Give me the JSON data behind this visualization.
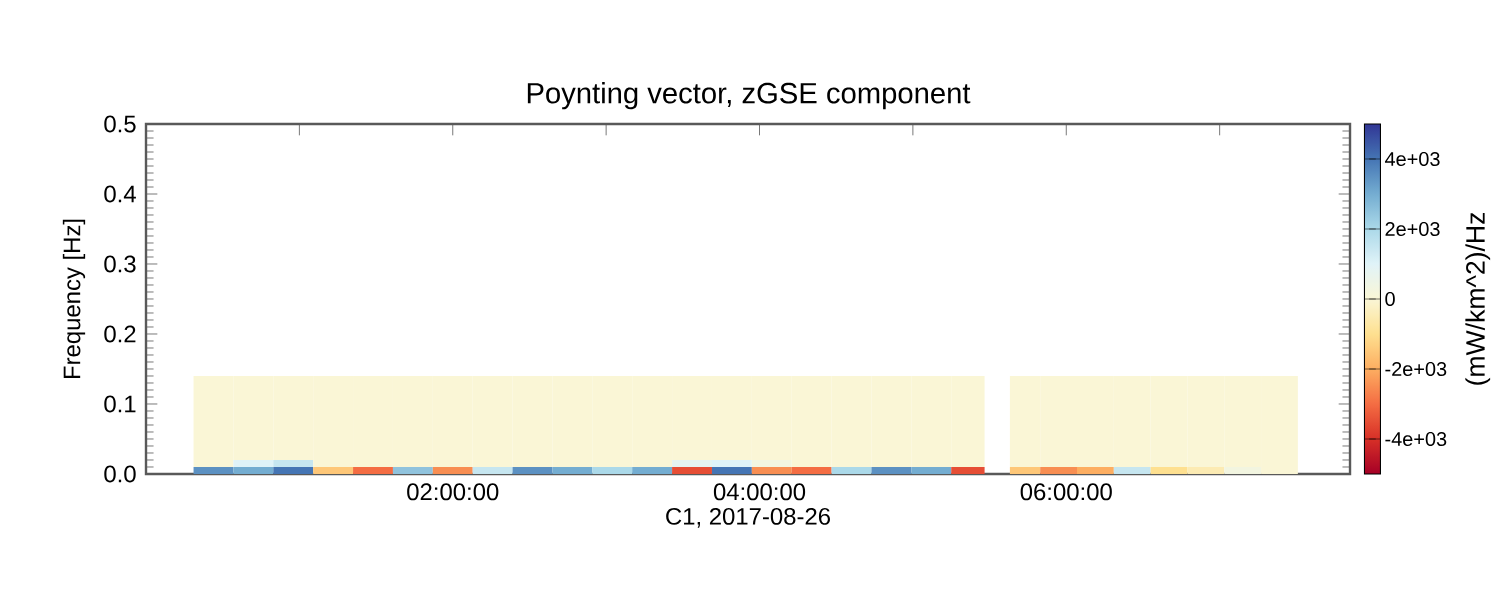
{
  "chart_data": {
    "type": "heatmap",
    "title": "Poynting vector, zGSE component",
    "xlabel": "C1, 2017-08-26",
    "ylabel": "Frequency [Hz]",
    "clabel": "(mW/km^2)/Hz",
    "x": [
      0.44,
      0.7,
      0.96,
      1.22,
      1.48,
      1.74,
      2.0,
      2.26,
      2.52,
      2.78,
      3.04,
      3.3,
      3.56,
      3.82,
      4.08,
      4.34,
      4.6,
      4.86,
      5.12,
      5.38,
      5.555,
      5.71,
      5.95,
      6.19,
      6.43,
      6.67,
      6.91,
      7.15,
      7.39
    ],
    "y": [
      0.005,
      0.015,
      0.025,
      0.035,
      0.045,
      0.055,
      0.065,
      0.075,
      0.085,
      0.095,
      0.105,
      0.115,
      0.125,
      0.135
    ],
    "cells": [
      [
        3500,
        3000,
        4000,
        -1500,
        -3000,
        2500,
        -2500,
        1500,
        3500,
        3000,
        2000,
        3000,
        -3500,
        4000,
        -2500,
        -3000,
        2000,
        3500,
        3000,
        -3500,
        null,
        -1500,
        -2500,
        -2000,
        1500,
        -1000,
        -500,
        300,
        0
      ],
      [
        0,
        1000,
        1500,
        0,
        0,
        0,
        0,
        0,
        0,
        0,
        0,
        0,
        800,
        1000,
        300,
        0,
        0,
        0,
        0,
        0,
        null,
        0,
        0,
        0,
        0,
        0,
        0,
        0,
        0
      ],
      [
        0,
        0,
        0,
        0,
        0,
        0,
        0,
        0,
        0,
        0,
        0,
        0,
        0,
        0,
        0,
        0,
        0,
        0,
        0,
        0,
        null,
        0,
        0,
        0,
        0,
        0,
        0,
        0,
        0
      ],
      [
        0,
        0,
        0,
        0,
        0,
        0,
        0,
        0,
        0,
        0,
        0,
        0,
        0,
        0,
        0,
        0,
        0,
        0,
        0,
        0,
        null,
        0,
        0,
        0,
        0,
        0,
        0,
        0,
        0
      ],
      [
        0,
        0,
        0,
        0,
        0,
        0,
        0,
        0,
        0,
        0,
        0,
        0,
        0,
        0,
        0,
        0,
        0,
        0,
        0,
        0,
        null,
        0,
        0,
        0,
        0,
        0,
        0,
        0,
        0
      ],
      [
        0,
        0,
        0,
        0,
        0,
        0,
        0,
        0,
        0,
        0,
        0,
        0,
        0,
        0,
        0,
        0,
        0,
        0,
        0,
        0,
        null,
        0,
        0,
        0,
        0,
        0,
        0,
        0,
        0
      ],
      [
        0,
        0,
        0,
        0,
        0,
        0,
        0,
        0,
        0,
        0,
        0,
        0,
        0,
        0,
        0,
        0,
        0,
        0,
        0,
        0,
        null,
        0,
        0,
        0,
        0,
        0,
        0,
        0,
        0
      ],
      [
        0,
        0,
        0,
        0,
        0,
        0,
        0,
        0,
        0,
        0,
        0,
        0,
        0,
        0,
        0,
        0,
        0,
        0,
        0,
        0,
        null,
        0,
        0,
        0,
        0,
        0,
        0,
        0,
        0
      ],
      [
        0,
        0,
        0,
        0,
        0,
        0,
        0,
        0,
        0,
        0,
        0,
        0,
        0,
        0,
        0,
        0,
        0,
        0,
        0,
        0,
        null,
        0,
        0,
        0,
        0,
        0,
        0,
        0,
        0
      ],
      [
        0,
        0,
        0,
        0,
        0,
        0,
        0,
        0,
        0,
        0,
        0,
        0,
        0,
        0,
        0,
        0,
        0,
        0,
        0,
        0,
        null,
        0,
        0,
        0,
        0,
        0,
        0,
        0,
        0
      ],
      [
        0,
        0,
        0,
        0,
        0,
        0,
        0,
        0,
        0,
        0,
        0,
        0,
        0,
        0,
        0,
        0,
        0,
        0,
        0,
        0,
        null,
        0,
        0,
        0,
        0,
        0,
        0,
        0,
        0
      ],
      [
        0,
        0,
        0,
        0,
        0,
        0,
        0,
        0,
        0,
        0,
        0,
        0,
        0,
        0,
        0,
        0,
        0,
        0,
        0,
        0,
        null,
        0,
        0,
        0,
        0,
        0,
        0,
        0,
        0
      ],
      [
        0,
        0,
        0,
        0,
        0,
        0,
        0,
        0,
        0,
        0,
        0,
        0,
        0,
        0,
        0,
        0,
        0,
        0,
        0,
        0,
        null,
        0,
        0,
        0,
        0,
        0,
        0,
        0,
        0
      ],
      [
        0,
        0,
        0,
        0,
        0,
        0,
        0,
        0,
        0,
        0,
        0,
        0,
        0,
        0,
        0,
        0,
        0,
        0,
        0,
        0,
        null,
        0,
        0,
        0,
        0,
        0,
        0,
        0,
        0
      ]
    ],
    "xlim": [
      0,
      7.85
    ],
    "ylim": [
      0,
      0.5
    ],
    "xticks": [
      {
        "value": 1,
        "label": null
      },
      {
        "value": 2,
        "label": "02:00:00"
      },
      {
        "value": 3,
        "label": null
      },
      {
        "value": 4,
        "label": "04:00:00"
      },
      {
        "value": 5,
        "label": null
      },
      {
        "value": 6,
        "label": "06:00:00"
      },
      {
        "value": 7,
        "label": null
      }
    ],
    "yticks": [
      {
        "value": 0,
        "label": "0.0"
      },
      0.1,
      0.2,
      0.3,
      0.4,
      0.5
    ],
    "clim": [
      -5000,
      5000
    ],
    "cticks": [
      {
        "value": -4000,
        "label": "-4e+03"
      },
      {
        "value": -2000,
        "label": "-2e+03"
      },
      0,
      {
        "value": 2000,
        "label": "2e+03"
      },
      {
        "value": 4000,
        "label": "4e+03"
      }
    ]
  }
}
